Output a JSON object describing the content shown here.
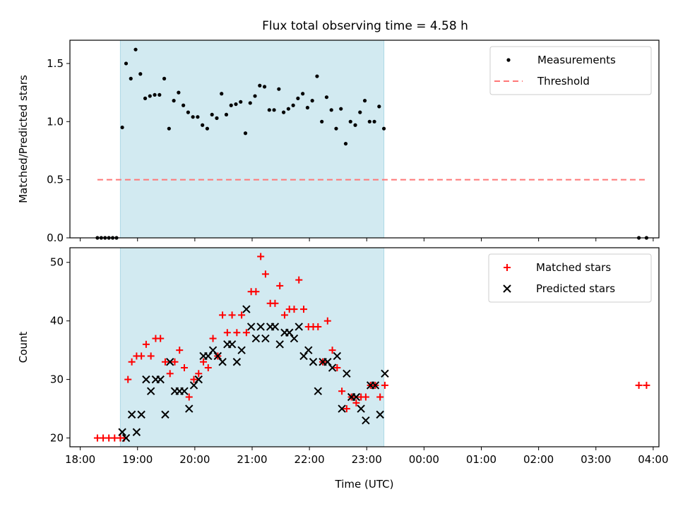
{
  "chart_data": [
    {
      "type": "scatter",
      "title": "Flux total observing time = 4.58 h",
      "xlabel": "",
      "ylabel": "Matched/Predicted stars",
      "xlim": [
        "18:00",
        "04:00"
      ],
      "ylim": [
        0,
        1.7
      ],
      "yticks": [
        0.0,
        0.5,
        1.0,
        1.5
      ],
      "ytick_labels": [
        "0.0",
        "0.5",
        "1.0",
        "1.5"
      ],
      "shaded_region": {
        "from": "18:42",
        "to": "23:18",
        "color": "#add8e6"
      },
      "legend_position": "top-right",
      "series": [
        {
          "name": "Measurements",
          "marker": "dot",
          "color": "#000000",
          "points": [
            [
              "18:18",
              0
            ],
            [
              "18:22",
              0
            ],
            [
              "18:26",
              0
            ],
            [
              "18:30",
              0
            ],
            [
              "18:34",
              0
            ],
            [
              "18:38",
              0
            ],
            [
              "18:44",
              0.95
            ],
            [
              "18:48",
              1.5
            ],
            [
              "18:53",
              1.37
            ],
            [
              "18:58",
              1.62
            ],
            [
              "19:03",
              1.41
            ],
            [
              "19:08",
              1.2
            ],
            [
              "19:13",
              1.22
            ],
            [
              "19:18",
              1.23
            ],
            [
              "19:23",
              1.23
            ],
            [
              "19:28",
              1.37
            ],
            [
              "19:33",
              0.94
            ],
            [
              "19:38",
              1.18
            ],
            [
              "19:43",
              1.25
            ],
            [
              "19:48",
              1.14
            ],
            [
              "19:53",
              1.08
            ],
            [
              "19:58",
              1.04
            ],
            [
              "20:03",
              1.04
            ],
            [
              "20:08",
              0.97
            ],
            [
              "20:13",
              0.94
            ],
            [
              "20:18",
              1.06
            ],
            [
              "20:23",
              1.03
            ],
            [
              "20:28",
              1.24
            ],
            [
              "20:33",
              1.06
            ],
            [
              "20:38",
              1.14
            ],
            [
              "20:43",
              1.15
            ],
            [
              "20:48",
              1.17
            ],
            [
              "20:53",
              0.9
            ],
            [
              "20:58",
              1.16
            ],
            [
              "21:03",
              1.22
            ],
            [
              "21:08",
              1.31
            ],
            [
              "21:13",
              1.3
            ],
            [
              "21:18",
              1.1
            ],
            [
              "21:23",
              1.1
            ],
            [
              "21:28",
              1.28
            ],
            [
              "21:33",
              1.08
            ],
            [
              "21:38",
              1.11
            ],
            [
              "21:43",
              1.14
            ],
            [
              "21:48",
              1.2
            ],
            [
              "21:53",
              1.24
            ],
            [
              "21:58",
              1.12
            ],
            [
              "22:03",
              1.18
            ],
            [
              "22:08",
              1.39
            ],
            [
              "22:13",
              1.0
            ],
            [
              "22:18",
              1.21
            ],
            [
              "22:23",
              1.1
            ],
            [
              "22:28",
              0.94
            ],
            [
              "22:33",
              1.11
            ],
            [
              "22:38",
              0.81
            ],
            [
              "22:43",
              1.0
            ],
            [
              "22:48",
              0.97
            ],
            [
              "22:53",
              1.08
            ],
            [
              "22:58",
              1.18
            ],
            [
              "23:03",
              1.0
            ],
            [
              "23:08",
              1.0
            ],
            [
              "23:13",
              1.13
            ],
            [
              "23:18",
              0.94
            ],
            [
              "03:45",
              0
            ],
            [
              "03:53",
              0
            ]
          ]
        },
        {
          "name": "Threshold",
          "marker": "dashed-line",
          "color": "#ff7777",
          "points": [
            [
              "18:18",
              0.5
            ],
            [
              "03:53",
              0.5
            ]
          ]
        }
      ]
    },
    {
      "type": "scatter",
      "title": "",
      "xlabel": "Time (UTC)",
      "ylabel": "Count",
      "xlim": [
        "18:00",
        "04:00"
      ],
      "ylim": [
        18.5,
        52.5
      ],
      "yticks": [
        20,
        30,
        40,
        50
      ],
      "ytick_labels": [
        "20",
        "30",
        "40",
        "50"
      ],
      "xticks": [
        "18:00",
        "19:00",
        "20:00",
        "21:00",
        "22:00",
        "23:00",
        "00:00",
        "01:00",
        "02:00",
        "03:00",
        "04:00"
      ],
      "shaded_region": {
        "from": "18:42",
        "to": "23:18",
        "color": "#add8e6"
      },
      "legend_position": "top-right",
      "series": [
        {
          "name": "Matched stars",
          "marker": "plus",
          "color": "#ff0000",
          "points": [
            [
              "18:18",
              20
            ],
            [
              "18:24",
              20
            ],
            [
              "18:30",
              20
            ],
            [
              "18:36",
              20
            ],
            [
              "18:42",
              20
            ],
            [
              "18:46",
              20
            ],
            [
              "18:50",
              30
            ],
            [
              "18:54",
              33
            ],
            [
              "18:59",
              34
            ],
            [
              "19:04",
              34
            ],
            [
              "19:09",
              36
            ],
            [
              "19:14",
              34
            ],
            [
              "19:19",
              37
            ],
            [
              "19:24",
              37
            ],
            [
              "19:29",
              33
            ],
            [
              "19:34",
              31
            ],
            [
              "19:39",
              33
            ],
            [
              "19:44",
              35
            ],
            [
              "19:49",
              32
            ],
            [
              "19:54",
              27
            ],
            [
              "19:59",
              30
            ],
            [
              "20:04",
              31
            ],
            [
              "20:09",
              33
            ],
            [
              "20:14",
              32
            ],
            [
              "20:19",
              37
            ],
            [
              "20:24",
              34
            ],
            [
              "20:29",
              41
            ],
            [
              "20:34",
              38
            ],
            [
              "20:39",
              41
            ],
            [
              "20:44",
              38
            ],
            [
              "20:49",
              41
            ],
            [
              "20:54",
              38
            ],
            [
              "20:59",
              45
            ],
            [
              "21:04",
              45
            ],
            [
              "21:09",
              51
            ],
            [
              "21:14",
              48
            ],
            [
              "21:19",
              43
            ],
            [
              "21:24",
              43
            ],
            [
              "21:29",
              46
            ],
            [
              "21:34",
              41
            ],
            [
              "21:39",
              42
            ],
            [
              "21:44",
              42
            ],
            [
              "21:49",
              47
            ],
            [
              "21:54",
              42
            ],
            [
              "21:59",
              39
            ],
            [
              "22:04",
              39
            ],
            [
              "22:09",
              39
            ],
            [
              "22:14",
              33
            ],
            [
              "22:19",
              40
            ],
            [
              "22:24",
              35
            ],
            [
              "22:29",
              32
            ],
            [
              "22:34",
              28
            ],
            [
              "22:39",
              25
            ],
            [
              "22:44",
              27
            ],
            [
              "22:49",
              26
            ],
            [
              "22:54",
              27
            ],
            [
              "22:59",
              27
            ],
            [
              "23:04",
              29
            ],
            [
              "23:09",
              29
            ],
            [
              "23:14",
              27
            ],
            [
              "23:19",
              29
            ],
            [
              "03:45",
              29
            ],
            [
              "03:53",
              29
            ]
          ]
        },
        {
          "name": "Predicted stars",
          "marker": "x",
          "color": "#000000",
          "points": [
            [
              "18:44",
              21
            ],
            [
              "18:48",
              20
            ],
            [
              "18:54",
              24
            ],
            [
              "18:59",
              21
            ],
            [
              "19:04",
              24
            ],
            [
              "19:09",
              30
            ],
            [
              "19:14",
              28
            ],
            [
              "19:19",
              30
            ],
            [
              "19:24",
              30
            ],
            [
              "19:29",
              24
            ],
            [
              "19:34",
              33
            ],
            [
              "19:39",
              28
            ],
            [
              "19:44",
              28
            ],
            [
              "19:49",
              28
            ],
            [
              "19:54",
              25
            ],
            [
              "19:59",
              29
            ],
            [
              "20:04",
              30
            ],
            [
              "20:09",
              34
            ],
            [
              "20:14",
              34
            ],
            [
              "20:19",
              35
            ],
            [
              "20:24",
              34
            ],
            [
              "20:29",
              33
            ],
            [
              "20:34",
              36
            ],
            [
              "20:39",
              36
            ],
            [
              "20:44",
              33
            ],
            [
              "20:49",
              35
            ],
            [
              "20:54",
              42
            ],
            [
              "20:59",
              39
            ],
            [
              "21:04",
              37
            ],
            [
              "21:09",
              39
            ],
            [
              "21:14",
              37
            ],
            [
              "21:19",
              39
            ],
            [
              "21:24",
              39
            ],
            [
              "21:29",
              36
            ],
            [
              "21:34",
              38
            ],
            [
              "21:39",
              38
            ],
            [
              "21:44",
              37
            ],
            [
              "21:49",
              39
            ],
            [
              "21:54",
              34
            ],
            [
              "21:59",
              35
            ],
            [
              "22:04",
              33
            ],
            [
              "22:09",
              28
            ],
            [
              "22:14",
              33
            ],
            [
              "22:19",
              33
            ],
            [
              "22:24",
              32
            ],
            [
              "22:29",
              34
            ],
            [
              "22:34",
              25
            ],
            [
              "22:39",
              31
            ],
            [
              "22:44",
              27
            ],
            [
              "22:49",
              27
            ],
            [
              "22:54",
              25
            ],
            [
              "22:59",
              23
            ],
            [
              "23:04",
              29
            ],
            [
              "23:09",
              29
            ],
            [
              "23:14",
              24
            ],
            [
              "23:19",
              31
            ]
          ]
        }
      ]
    }
  ]
}
